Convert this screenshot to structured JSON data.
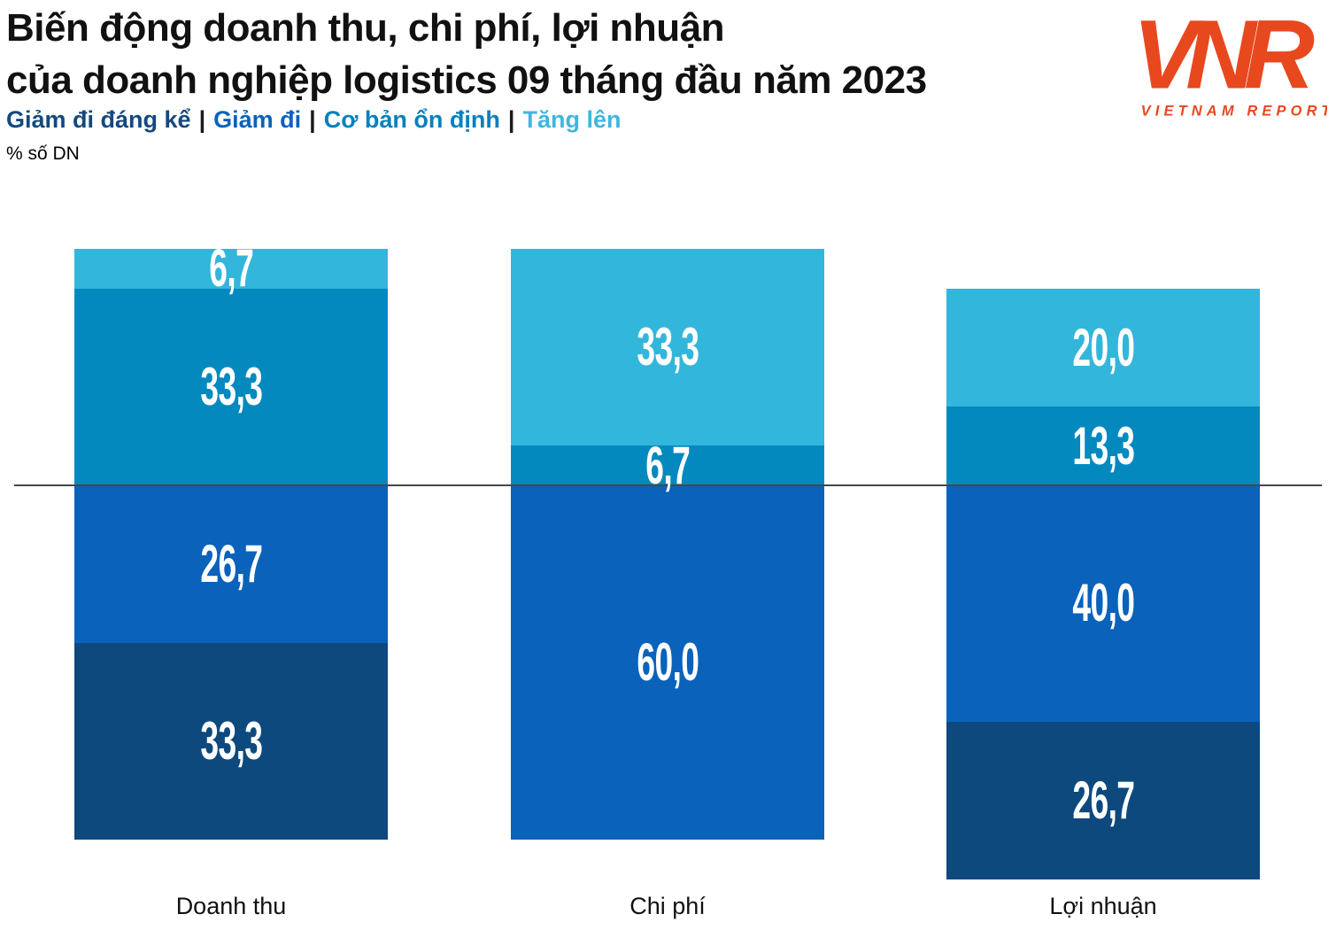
{
  "header": {
    "title_line1": "Biến động doanh thu, chi phí, lợi nhuận",
    "title_line2": "của doanh nghiệp logistics 09 tháng đầu năm 2023",
    "unit_note": "% số DN",
    "legend_separator": "|",
    "legend": [
      {
        "label": "Giảm đi đáng kể",
        "color": "#14497E"
      },
      {
        "label": "Giảm đi",
        "color": "#0A62BB"
      },
      {
        "label": "Cơ bản ổn định",
        "color": "#0780BD"
      },
      {
        "label": "Tăng lên",
        "color": "#3FB6DE"
      }
    ]
  },
  "logo": {
    "monogram": "VNR",
    "text": "VIETNAM REPORT",
    "color": "#E8481E"
  },
  "chart_data": {
    "type": "bar",
    "variant": "diverging-stacked",
    "title": "Biến động doanh thu, chi phí, lợi nhuận của doanh nghiệp logistics 09 tháng đầu năm 2023",
    "unit": "% số DN",
    "legend_position": "top",
    "grid": false,
    "categories": [
      "Doanh thu",
      "Chi phí",
      "Lợi nhuận"
    ],
    "series": [
      {
        "key": "tang-len",
        "name": "Tăng lên",
        "color": "#33B6DB",
        "values": [
          6.7,
          33.3,
          20.0
        ],
        "labels": [
          "6,7",
          "33,3",
          "20,0"
        ]
      },
      {
        "key": "co-ban-on-dinh",
        "name": "Cơ bản ổn định",
        "color": "#0389BE",
        "values": [
          33.3,
          6.7,
          13.3
        ],
        "labels": [
          "33,3",
          "6,7",
          "13,3"
        ]
      },
      {
        "key": "giam-di",
        "name": "Giảm đi",
        "color": "#0A62BB",
        "values": [
          26.7,
          60.0,
          40.0
        ],
        "labels": [
          "26,7",
          "60,0",
          "40,0"
        ]
      },
      {
        "key": "giam-di-dang-ke",
        "name": "Giảm đi đáng kể",
        "color": "#0E497E",
        "values": [
          33.3,
          0,
          26.7
        ],
        "labels": [
          "33,3",
          "",
          "26,7"
        ]
      }
    ],
    "above_line_series": [
      "Tăng lên",
      "Cơ bản ổn định"
    ],
    "baseline_separates": "Tăng lên + Cơ bản ổn định (above) vs Giảm đi + Giảm đi đáng kể (below)"
  }
}
